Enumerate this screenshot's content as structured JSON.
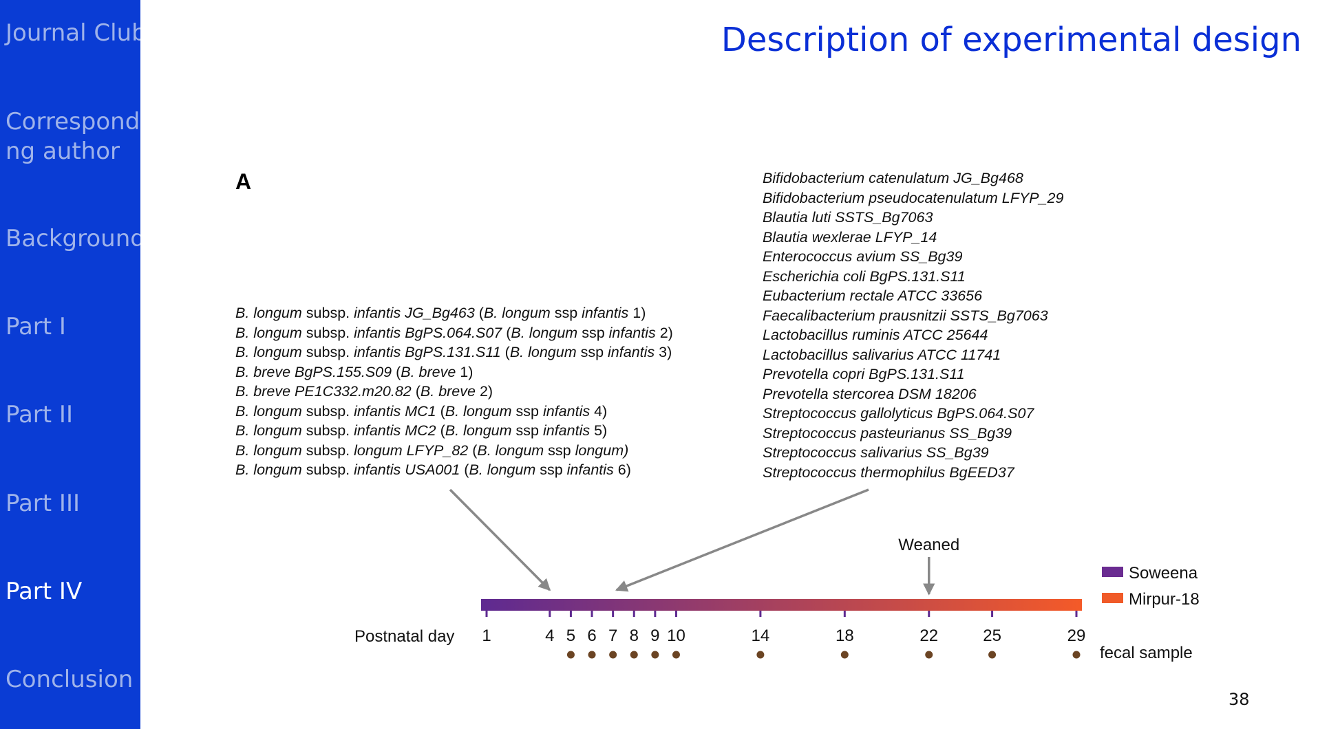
{
  "sidebar": {
    "items": [
      {
        "label": "Journal Club",
        "active": false
      },
      {
        "label": "Correspondi",
        "label_line2": "ng author",
        "active": false
      },
      {
        "label": "Background",
        "active": false
      },
      {
        "label": "Part I",
        "active": false
      },
      {
        "label": "Part II",
        "active": false
      },
      {
        "label": "Part III",
        "active": false
      },
      {
        "label": "Part IV",
        "active": true
      },
      {
        "label": "Conclusion",
        "active": false
      }
    ],
    "colors": {
      "background": "#0a3cd4",
      "text": "#9fb3ea",
      "active_text": "#ffffff"
    }
  },
  "slide": {
    "title": "Description of experimental design",
    "title_color": "#0a2fd6",
    "number": "38"
  },
  "figure": {
    "panel_label": "A",
    "early_strains": [
      {
        "parts": [
          {
            "t": "B. longum",
            "i": true
          },
          {
            "t": " subsp. ",
            "i": false
          },
          {
            "t": "infantis JG_Bg463",
            "i": true
          },
          {
            "t": " (",
            "i": false
          },
          {
            "t": "B. longum",
            "i": true
          },
          {
            "t": " ssp ",
            "i": false
          },
          {
            "t": "infantis",
            "i": true
          },
          {
            "t": " 1)",
            "i": false
          }
        ]
      },
      {
        "parts": [
          {
            "t": "B. longum",
            "i": true
          },
          {
            "t": " subsp. ",
            "i": false
          },
          {
            "t": "infantis BgPS.064.S07",
            "i": true
          },
          {
            "t": " (",
            "i": false
          },
          {
            "t": "B. longum",
            "i": true
          },
          {
            "t": " ssp ",
            "i": false
          },
          {
            "t": "infantis",
            "i": true
          },
          {
            "t": " 2)",
            "i": false
          }
        ]
      },
      {
        "parts": [
          {
            "t": "B. longum",
            "i": true
          },
          {
            "t": " subsp. ",
            "i": false
          },
          {
            "t": "infantis BgPS.131.S11",
            "i": true
          },
          {
            "t": " (",
            "i": false
          },
          {
            "t": "B. longum",
            "i": true
          },
          {
            "t": " ssp ",
            "i": false
          },
          {
            "t": "infantis",
            "i": true
          },
          {
            "t": " 3)",
            "i": false
          }
        ]
      },
      {
        "parts": [
          {
            "t": "B. breve BgPS.155.S09",
            "i": true
          },
          {
            "t": " (",
            "i": false
          },
          {
            "t": "B. breve",
            "i": true
          },
          {
            "t": " 1)",
            "i": false
          }
        ]
      },
      {
        "parts": [
          {
            "t": "B. breve PE1C332.m20.82",
            "i": true
          },
          {
            "t": " (",
            "i": false
          },
          {
            "t": "B. breve",
            "i": true
          },
          {
            "t": " 2)",
            "i": false
          }
        ]
      },
      {
        "parts": [
          {
            "t": "B. longum",
            "i": true
          },
          {
            "t": " subsp. ",
            "i": false
          },
          {
            "t": "infantis MC1",
            "i": true
          },
          {
            "t": " (",
            "i": false
          },
          {
            "t": "B. longum",
            "i": true
          },
          {
            "t": " ssp ",
            "i": false
          },
          {
            "t": "infantis",
            "i": true
          },
          {
            "t": " 4)",
            "i": false
          }
        ]
      },
      {
        "parts": [
          {
            "t": "B. longum",
            "i": true
          },
          {
            "t": " subsp. ",
            "i": false
          },
          {
            "t": "infantis MC2",
            "i": true
          },
          {
            "t": " (",
            "i": false
          },
          {
            "t": "B. longum",
            "i": true
          },
          {
            "t": " ssp ",
            "i": false
          },
          {
            "t": "infantis",
            "i": true
          },
          {
            "t": " 5)",
            "i": false
          }
        ]
      },
      {
        "parts": [
          {
            "t": "B. longum",
            "i": true
          },
          {
            "t": " subsp. ",
            "i": false
          },
          {
            "t": "longum LFYP_82",
            "i": true
          },
          {
            "t": " (",
            "i": false
          },
          {
            "t": "B. longum",
            "i": true
          },
          {
            "t": " ssp ",
            "i": false
          },
          {
            "t": "longum)",
            "i": true
          }
        ]
      },
      {
        "parts": [
          {
            "t": "B. longum",
            "i": true
          },
          {
            "t": " subsp. ",
            "i": false
          },
          {
            "t": "infantis USA001",
            "i": true
          },
          {
            "t": " (",
            "i": false
          },
          {
            "t": "B. longum",
            "i": true
          },
          {
            "t": " ssp ",
            "i": false
          },
          {
            "t": "infantis",
            "i": true
          },
          {
            "t": " 6)",
            "i": false
          }
        ]
      }
    ],
    "late_strains": [
      "Bifidobacterium catenulatum JG_Bg468",
      "Bifidobacterium pseudocatenulatum LFYP_29",
      "Blautia luti SSTS_Bg7063",
      "Blautia wexlerae LFYP_14",
      "Enterococcus avium SS_Bg39",
      "Escherichia coli BgPS.131.S11",
      "Eubacterium rectale ATCC 33656",
      "Faecalibacterium prausnitzii SSTS_Bg7063",
      "Lactobacillus ruminis ATCC 25644",
      "Lactobacillus salivarius ATCC 11741",
      "Prevotella copri BgPS.131.S11",
      "Prevotella stercorea DSM 18206",
      "Streptococcus gallolyticus BgPS.064.S07",
      "Streptococcus pasteurianus SS_Bg39",
      "Streptococcus salivarius SS_Bg39",
      "Streptococcus thermophilus BgEED37"
    ],
    "timeline": {
      "axis_label": "Postnatal day",
      "day_range": [
        1,
        29
      ],
      "ticks": [
        1,
        4,
        5,
        6,
        7,
        8,
        9,
        10,
        14,
        18,
        22,
        25,
        29
      ],
      "fecal_sample_days": [
        5,
        6,
        7,
        8,
        9,
        10,
        14,
        18,
        22,
        25,
        29
      ],
      "fecal_sample_label": "fecal sample",
      "weaned_label": "Weaned",
      "weaned_day": 22,
      "early_gavage_day": 4,
      "late_gavage_day": 7,
      "legend": [
        {
          "label": "Soweena",
          "color": "#6a2c91"
        },
        {
          "label": "Mirpur-18",
          "color": "#f05a28"
        }
      ],
      "gradient_colors": [
        "#5e2a91",
        "#f45a28"
      ],
      "dot_color": "#6b4423",
      "arrow_color": "#888888"
    }
  }
}
